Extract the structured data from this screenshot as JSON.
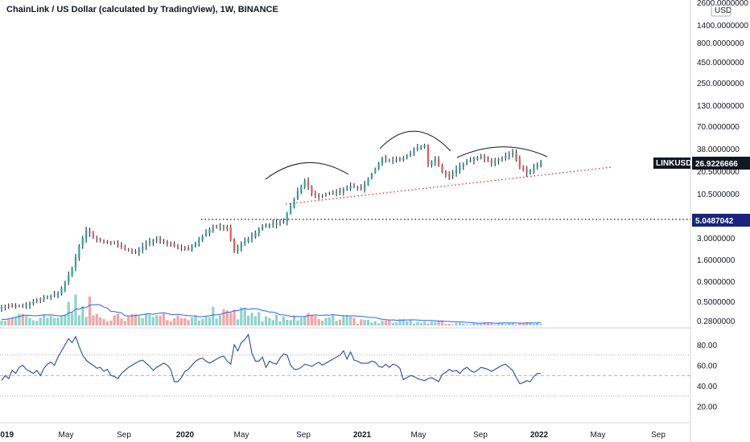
{
  "header": {
    "title": "ChainLink / US Dollar (calculated by TradingView), 1W, BINANCE",
    "currency": "USD",
    "top_scale": "2600.0000000"
  },
  "colors": {
    "up": "#26a69a",
    "down": "#ef5350",
    "wick": "#131722",
    "rsi": "#2a49a8",
    "vol_ma": "#2962ff",
    "trendline": "#e53935",
    "arc": "#131722",
    "badge_dark": "#131722",
    "badge_blue": "#1a237e"
  },
  "chart_data": [
    {
      "type": "candlestick",
      "name": "LINKUSD",
      "y_scale": "log",
      "ylim": [
        0.24,
        2600
      ],
      "x_ticks": [
        "2019",
        "May",
        "Sep",
        "2020",
        "May",
        "Sep",
        "2021",
        "May",
        "Sep",
        "2022",
        "May",
        "Sep"
      ],
      "y_ticks": [
        "2600.0000000",
        "1400.0000000",
        "800.0000000",
        "450.0000000",
        "250.0000000",
        "130.0000000",
        "70.0000000",
        "38.0000000",
        "20.5000000",
        "10.5000000",
        "3.0000000",
        "1.6000000",
        "0.9000000",
        "0.5000000",
        "0.2800000"
      ],
      "last_price": "26.9226666",
      "last_label": "LINKUSD",
      "level_price": "5.0487042",
      "level_value": 5.0487042,
      "anchor_close": [
        [
          0,
          0.42
        ],
        [
          6,
          0.44
        ],
        [
          12,
          0.55
        ],
        [
          16,
          0.62
        ],
        [
          18,
          0.85
        ],
        [
          20,
          1.3
        ],
        [
          22,
          2.4
        ],
        [
          24,
          3.8
        ],
        [
          26,
          3.1
        ],
        [
          29,
          2.7
        ],
        [
          32,
          2.6
        ],
        [
          35,
          2.2
        ],
        [
          38,
          2.0
        ],
        [
          41,
          2.6
        ],
        [
          44,
          3.0
        ],
        [
          47,
          2.6
        ],
        [
          50,
          2.3
        ],
        [
          53,
          2.2
        ],
        [
          56,
          2.9
        ],
        [
          59,
          3.9
        ],
        [
          62,
          4.3
        ],
        [
          64,
          4.0
        ],
        [
          66,
          2.1
        ],
        [
          68,
          2.6
        ],
        [
          71,
          3.2
        ],
        [
          74,
          4.2
        ],
        [
          77,
          4.6
        ],
        [
          80,
          4.9
        ],
        [
          82,
          7.5
        ],
        [
          84,
          11.5
        ],
        [
          86,
          15.5
        ],
        [
          88,
          11.0
        ],
        [
          90,
          10.0
        ],
        [
          93,
          10.8
        ],
        [
          96,
          11.5
        ],
        [
          99,
          13.5
        ],
        [
          102,
          12.3
        ],
        [
          104,
          16.5
        ],
        [
          106,
          22.0
        ],
        [
          108,
          30.0
        ],
        [
          110,
          28.0
        ],
        [
          112,
          28.5
        ],
        [
          114,
          30.0
        ],
        [
          116,
          34.0
        ],
        [
          118,
          40.0
        ],
        [
          120,
          43.0
        ],
        [
          121,
          25.0
        ],
        [
          123,
          29.0
        ],
        [
          125,
          20.0
        ],
        [
          127,
          17.5
        ],
        [
          130,
          24.0
        ],
        [
          133,
          28.0
        ],
        [
          136,
          31.0
        ],
        [
          139,
          26.0
        ],
        [
          142,
          30.0
        ],
        [
          145,
          35.0
        ],
        [
          147,
          23.0
        ],
        [
          149,
          19.5
        ],
        [
          152,
          24.5
        ],
        [
          153,
          26.9
        ]
      ],
      "volume_ma": "20-period volume moving average"
    },
    {
      "type": "line",
      "name": "RSI",
      "ylim": [
        0,
        100
      ],
      "y_ticks": [
        "80.00",
        "60.00",
        "40.00",
        "20.00"
      ],
      "levels": [
        70,
        50,
        30
      ],
      "values": [
        45,
        50,
        47,
        55,
        52,
        58,
        60,
        56,
        54,
        52,
        55,
        50,
        57,
        61,
        63,
        60,
        68,
        74,
        80,
        86,
        82,
        88,
        78,
        70,
        65,
        62,
        60,
        57,
        58,
        54,
        56,
        50,
        49,
        47,
        52,
        55,
        58,
        60,
        62,
        64,
        65,
        62,
        59,
        55,
        58,
        60,
        62,
        60,
        56,
        44,
        44,
        48,
        54,
        56,
        60,
        64,
        66,
        67,
        64,
        62,
        64,
        66,
        68,
        69,
        64,
        61,
        80,
        74,
        82,
        85,
        90,
        72,
        64,
        64,
        68,
        58,
        64,
        62,
        61,
        67,
        71,
        70,
        60,
        56,
        56,
        58,
        61,
        60,
        59,
        61,
        63,
        60,
        62,
        64,
        66,
        68,
        70,
        74,
        66,
        73,
        65,
        64,
        62,
        62,
        62,
        64,
        63,
        59,
        58,
        61,
        58,
        61,
        60,
        57,
        46,
        48,
        50,
        49,
        47,
        46,
        45,
        47,
        48,
        46,
        44,
        51,
        53,
        56,
        54,
        55,
        52,
        56,
        58,
        55,
        53,
        55,
        58,
        57,
        56,
        54,
        56,
        58,
        60,
        61,
        58,
        55,
        48,
        42,
        43,
        45,
        44,
        49,
        52,
        52
      ]
    }
  ]
}
